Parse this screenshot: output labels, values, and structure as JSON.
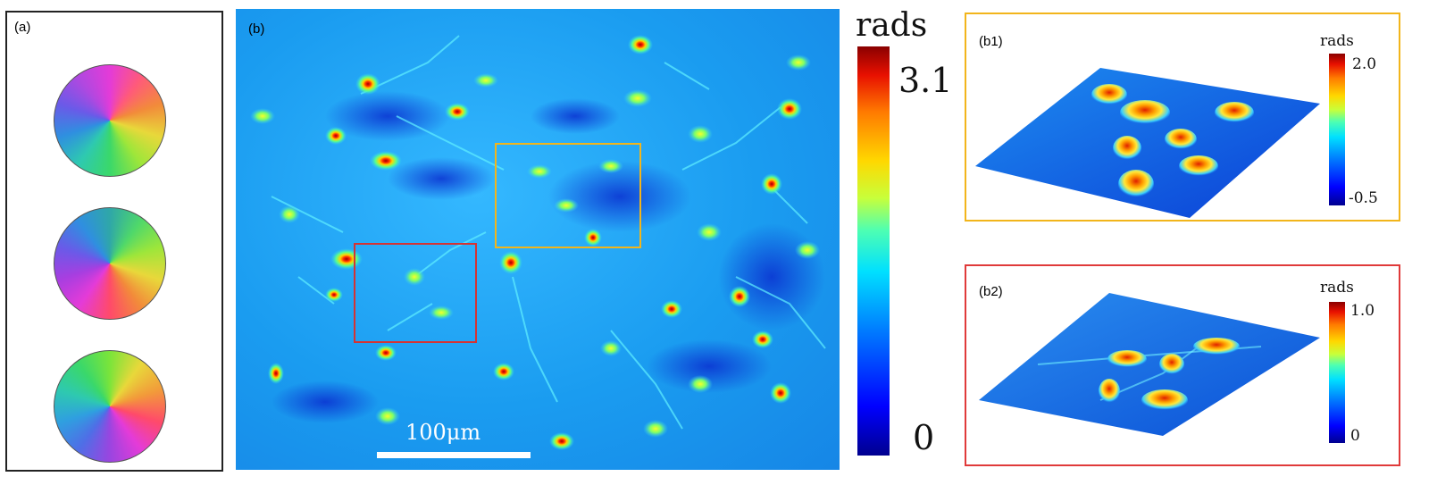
{
  "panels": {
    "a": {
      "label": "(a)"
    },
    "b": {
      "label": "(b)",
      "scalebar_label": "100μm"
    },
    "b1": {
      "label": "(b1)",
      "colorbar": {
        "title": "rads",
        "max": "2.0",
        "min": "-0.5"
      }
    },
    "b2": {
      "label": "(b2)",
      "colorbar": {
        "title": "rads",
        "max": "1.0",
        "min": "0"
      }
    }
  },
  "main_colorbar": {
    "title": "rads",
    "max": "3.1",
    "min": "0"
  },
  "colors": {
    "roi_yellow": "#f2b51b",
    "roi_red": "#d53333",
    "background_blue": "#1a9cf0"
  }
}
